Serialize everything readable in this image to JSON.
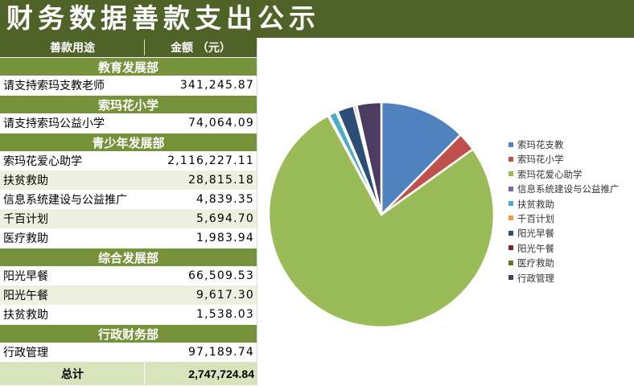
{
  "title": "财务数据善款支出公示",
  "table": {
    "header": {
      "purpose": "善款用途",
      "amount": "金额 （元）"
    },
    "sections": [
      {
        "name": "教育发展部",
        "rows": [
          {
            "purpose": "请支持索玛支教老师",
            "amount": "341,245.87"
          }
        ]
      },
      {
        "name": "索玛花小学",
        "rows": [
          {
            "purpose": "请支持索玛公益小学",
            "amount": "74,064.09"
          }
        ]
      },
      {
        "name": "青少年发展部",
        "rows": [
          {
            "purpose": "索玛花爱心助学",
            "amount": "2,116,227.11"
          },
          {
            "purpose": "扶贫救助",
            "amount": "28,815.18"
          },
          {
            "purpose": "信息系统建设与公益推广",
            "amount": "4,839.35"
          },
          {
            "purpose": "千百计划",
            "amount": "5,694.70"
          },
          {
            "purpose": "医疗救助",
            "amount": "1,983.94"
          }
        ]
      },
      {
        "name": "综合发展部",
        "rows": [
          {
            "purpose": "阳光早餐",
            "amount": "66,509.53"
          },
          {
            "purpose": "阳光午餐",
            "amount": "9,617.30"
          },
          {
            "purpose": "扶贫救助",
            "amount": "1,538.03"
          }
        ]
      },
      {
        "name": "行政财务部",
        "rows": [
          {
            "purpose": "行政管理",
            "amount": "97,189.74"
          }
        ]
      }
    ],
    "total": {
      "label": "总计",
      "amount": "2,747,724.84"
    }
  },
  "chart_data": {
    "type": "pie",
    "categories": [
      "索玛花支教",
      "索玛花小学",
      "索玛花爱心助学",
      "信息系统建设与公益推广",
      "扶贫救助",
      "千百计划",
      "阳光早餐",
      "阳光午餐",
      "医疗救助",
      "行政管理"
    ],
    "values": [
      341245.87,
      74064.09,
      2116227.11,
      4839.35,
      30353.21,
      5694.7,
      66509.53,
      9617.3,
      1983.94,
      97189.74
    ],
    "colors": [
      "#4f81bd",
      "#c0504d",
      "#9bbb59",
      "#8064a2",
      "#4bacc6",
      "#f79646",
      "#2c4d75",
      "#772c2a",
      "#5f7530",
      "#4d3b62"
    ],
    "legend_position": "right",
    "title": ""
  }
}
